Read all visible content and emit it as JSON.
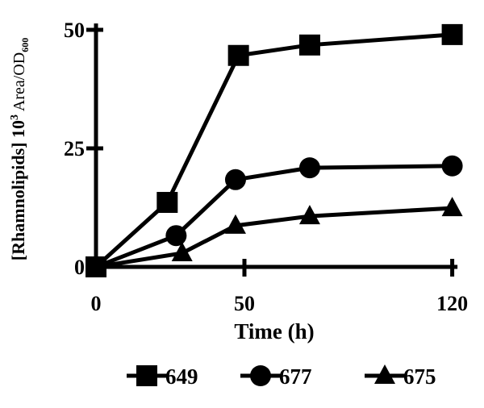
{
  "chart_data": {
    "type": "line",
    "title": "",
    "xlabel": "Time (h)",
    "ylabel": "[Rhamnolipids] 10",
    "ylabel_sup": "3",
    "ylabel_rest": " Area/OD",
    "ylabel_sub": "600",
    "xlim": [
      0,
      121.5
    ],
    "ylim": [
      0,
      51
    ],
    "x_ticks": [
      0,
      50,
      120
    ],
    "x_tick_labels": [
      "0",
      "50",
      "120"
    ],
    "y_ticks": [
      0,
      25,
      50
    ],
    "y_tick_labels": [
      "0",
      "25",
      "50"
    ],
    "grid": false,
    "legend_position": "bottom",
    "series": [
      {
        "name": "649",
        "marker": "square",
        "x": [
          0,
          24,
          48,
          72,
          120
        ],
        "y": [
          0,
          13.6,
          44.6,
          46.8,
          49.0
        ]
      },
      {
        "name": "677",
        "marker": "circle",
        "x": [
          0,
          27,
          47,
          72,
          120
        ],
        "y": [
          0,
          6.6,
          18.4,
          20.9,
          21.3
        ]
      },
      {
        "name": "675",
        "marker": "triangle",
        "x": [
          0,
          29,
          47,
          72,
          120
        ],
        "y": [
          0,
          2.9,
          8.7,
          10.7,
          12.4
        ]
      }
    ],
    "colors": {
      "ink": "#000000"
    }
  }
}
